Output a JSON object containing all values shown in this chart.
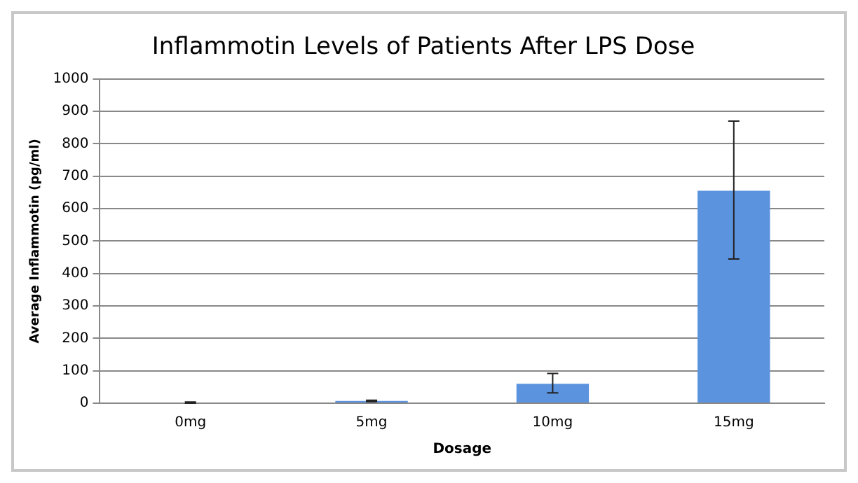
{
  "chart_data": {
    "type": "bar",
    "title": "Inflammotin Levels of Patients After LPS Dose",
    "xlabel": "Dosage",
    "ylabel": "Average Inflammotin (pg/ml)",
    "categories": [
      "0mg",
      "5mg",
      "10mg",
      "15mg"
    ],
    "values": [
      2,
      7,
      60,
      655
    ],
    "errors": [
      2,
      2,
      [
        32,
        92
      ],
      [
        445,
        870
      ]
    ],
    "color": "#5b93de",
    "ylim": [
      0,
      1000
    ],
    "yticks": [
      0,
      100,
      200,
      300,
      400,
      500,
      600,
      700,
      800,
      900,
      1000
    ],
    "grid": "y",
    "legend": false
  }
}
